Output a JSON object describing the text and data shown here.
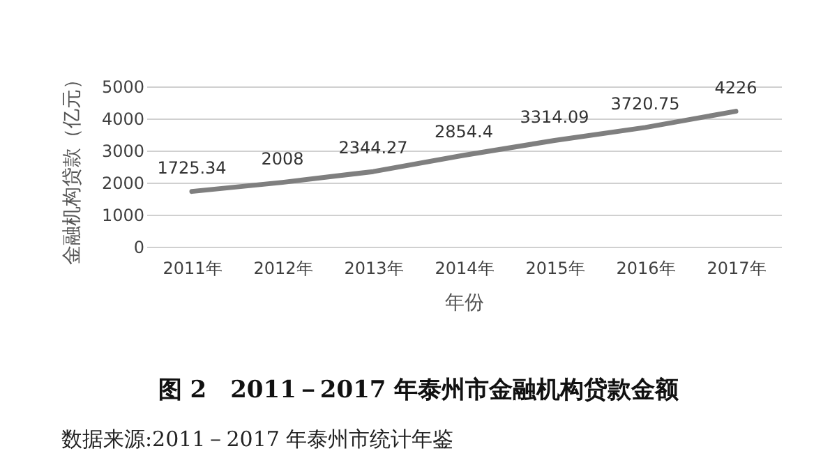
{
  "chart_data": {
    "type": "line",
    "title": "图 2　2011－2017 年泰州市金融机构贷款金额",
    "annotations": [
      "数据来源:2011－2017 年泰州市统计年鉴"
    ],
    "xlabel": "年份",
    "ylabel": "金融机构贷款（亿元）",
    "categories": [
      "2011年",
      "2012年",
      "2013年",
      "2014年",
      "2015年",
      "2016年",
      "2017年"
    ],
    "series": [
      {
        "color": "#7f7f7f",
        "values": [
          1725.34,
          2008,
          2344.27,
          2854.4,
          3314.09,
          3720.75,
          4226
        ]
      }
    ],
    "ylim": [
      0,
      5000
    ],
    "yticks": [
      0,
      1000,
      2000,
      3000,
      4000,
      5000
    ],
    "grid": "y",
    "data_labels": true,
    "marker": "none",
    "line_style": "solid"
  }
}
